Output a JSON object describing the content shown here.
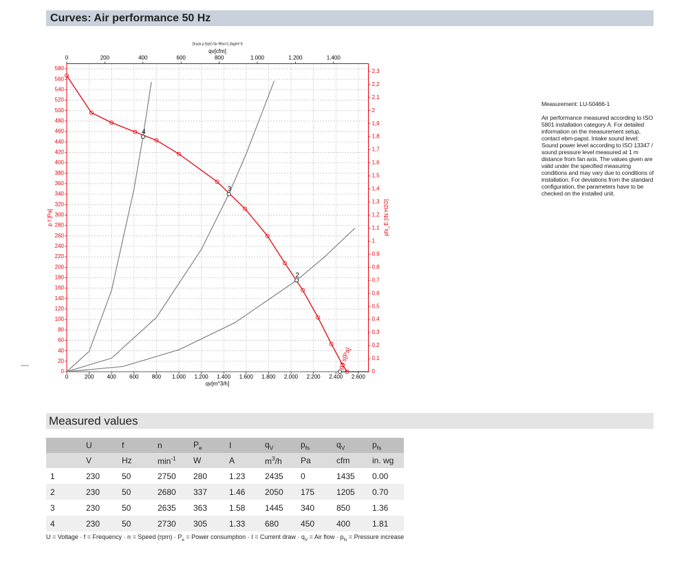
{
  "header": {
    "title": "Curves: Air performance 50 Hz"
  },
  "chart_data": {
    "type": "line",
    "title": "Druck p f(qV) für Rho=1.2kg/m^3",
    "x_label": "qv[m^3/h]",
    "x2_label": "qv[cfm]",
    "y_label": "p f [Pa]",
    "y2_label": "pfs_E [IN H2O]",
    "curve_label": "p f s[Pa]",
    "xlim": [
      0,
      2690
    ],
    "xticks": [
      0,
      200,
      400,
      600,
      800,
      {
        "value": 1000,
        "label": "1.000"
      },
      {
        "value": 1200,
        "label": "1.200"
      },
      {
        "value": 1400,
        "label": "1.400"
      },
      {
        "value": 1600,
        "label": "1.600"
      },
      {
        "value": 1800,
        "label": "1.800"
      },
      {
        "value": 2000,
        "label": "2.000"
      },
      {
        "value": 2200,
        "label": "2.200"
      },
      {
        "value": 2400,
        "label": "2.400"
      },
      {
        "value": 2600,
        "label": "2.600"
      }
    ],
    "x2lim": [
      0,
      1583
    ],
    "x2ticks": [
      0,
      200,
      400,
      600,
      800,
      {
        "value": 1000,
        "label": "1.000"
      },
      {
        "value": 1200,
        "label": "1.200"
      },
      {
        "value": 1400,
        "label": "1.400"
      }
    ],
    "ylim": [
      0,
      590
    ],
    "yticks": [
      0,
      20,
      40,
      60,
      80,
      100,
      120,
      140,
      160,
      180,
      200,
      220,
      240,
      260,
      280,
      300,
      320,
      340,
      360,
      380,
      400,
      420,
      440,
      460,
      480,
      500,
      520,
      540,
      560,
      580
    ],
    "y2lim": [
      0,
      2.36
    ],
    "y2ticks": [
      0,
      {
        "value": 0.1,
        "label": "0,1"
      },
      {
        "value": 0.2,
        "label": "0,2"
      },
      {
        "value": 0.3,
        "label": "0,3"
      },
      {
        "value": 0.4,
        "label": "0,4"
      },
      {
        "value": 0.5,
        "label": "0,5"
      },
      {
        "value": 0.6,
        "label": "0,6"
      },
      {
        "value": 0.7,
        "label": "0,7"
      },
      {
        "value": 0.8,
        "label": "0,8"
      },
      {
        "value": 0.9,
        "label": "0,9"
      },
      1,
      {
        "value": 1.1,
        "label": "1,1"
      },
      {
        "value": 1.2,
        "label": "1,2"
      },
      {
        "value": 1.3,
        "label": "1,3"
      },
      {
        "value": 1.4,
        "label": "1,4"
      },
      {
        "value": 1.5,
        "label": "1,5"
      },
      {
        "value": 1.6,
        "label": "1,6"
      },
      {
        "value": 1.7,
        "label": "1,7"
      },
      {
        "value": 1.8,
        "label": "1,8"
      },
      {
        "value": 1.9,
        "label": "1,9"
      },
      2,
      {
        "value": 2.1,
        "label": "2,1"
      },
      {
        "value": 2.2,
        "label": "2,2"
      },
      {
        "value": 2.3,
        "label": "2,3"
      }
    ],
    "grid": true,
    "axis_color": "#e8000d",
    "series": [
      {
        "color": "#e8000d",
        "markers": true,
        "x": [
          0,
          220,
          400,
          610,
          800,
          1000,
          1340,
          1590,
          1790,
          1945,
          2105,
          2240,
          2360,
          2460,
          2500
        ],
        "values": [
          567,
          496,
          477,
          459,
          443,
          417,
          364,
          312,
          260,
          208,
          156,
          104,
          53,
          13,
          0
        ]
      },
      {
        "color": "#808080",
        "markers": false,
        "x": [
          0,
          200,
          400,
          600,
          680,
          755
        ],
        "values": [
          0,
          39,
          156,
          350,
          450,
          555
        ]
      },
      {
        "color": "#808080",
        "markers": false,
        "x": [
          0,
          400,
          800,
          1200,
          1445,
          1600,
          1850
        ],
        "values": [
          0,
          26,
          104,
          234,
          340,
          417,
          557
        ]
      },
      {
        "color": "#808080",
        "markers": false,
        "x": [
          0,
          500,
          1000,
          1500,
          2050,
          2300,
          2570
        ],
        "values": [
          0,
          10,
          42,
          94,
          175,
          220,
          275
        ]
      },
      {
        "color": "#808080",
        "markers": false,
        "x": [
          0,
          2435
        ],
        "values": [
          0,
          0
        ]
      }
    ],
    "operating_points": {
      "x": [
        2435,
        2050,
        1445,
        680
      ],
      "y": [
        0,
        175,
        340,
        450
      ],
      "labels": [
        null,
        "2",
        "3",
        "4"
      ]
    }
  },
  "measurement": {
    "title": "Measurement: LU-50466-1",
    "lines": [
      "Air performance measured according to ISO",
      "5801 installation category A. For detailed",
      "information on the measurement setup,",
      "contact ebm-papst. Intake sound level:",
      "Sound power level according to ISO 13347 /",
      "sound pressure level measured at 1 m",
      "distance from fan axis. The values given are",
      "valid under the specified measuring",
      "conditions and may vary due to conditions of",
      "installation. For deviations from the standard",
      "configuration, the parameters have to be",
      "checked on the installed unit."
    ]
  },
  "section": {
    "title": "Measured values"
  },
  "table": {
    "header": [
      null,
      "U",
      "f",
      "n",
      [
        {
          "t": "P"
        },
        {
          "t": "e",
          "sub": true
        }
      ],
      "I",
      [
        {
          "t": "q"
        },
        {
          "t": "V",
          "sub": true
        }
      ],
      [
        {
          "t": "p"
        },
        {
          "t": "fs",
          "sub": true
        }
      ],
      [
        {
          "t": "q"
        },
        {
          "t": "V",
          "sub": true
        }
      ],
      [
        {
          "t": "p"
        },
        {
          "t": "fs",
          "sub": true
        }
      ]
    ],
    "units": [
      null,
      "V",
      "Hz",
      [
        {
          "t": "min"
        },
        {
          "t": "-1",
          "sup": true
        }
      ],
      "W",
      "A",
      [
        {
          "t": "m"
        },
        {
          "t": "3",
          "sup": true
        },
        {
          "t": "/h"
        }
      ],
      "Pa",
      "cfm",
      "in. wg"
    ],
    "rows": [
      [
        "1",
        "230",
        "50",
        "2750",
        "280",
        "1.23",
        "2435",
        "0",
        "1435",
        "0.00"
      ],
      [
        "2",
        "230",
        "50",
        "2680",
        "337",
        "1.46",
        "2050",
        "175",
        "1205",
        "0.70"
      ],
      [
        "3",
        "230",
        "50",
        "2635",
        "363",
        "1.58",
        "1445",
        "340",
        "850",
        "1.36"
      ],
      [
        "4",
        "230",
        "50",
        "2730",
        "305",
        "1.33",
        "680",
        "450",
        "400",
        "1.81"
      ]
    ]
  },
  "footnote": [
    {
      "t": "U = Voltage · f = Frequency · n = Speed (rpm) · P"
    },
    {
      "t": "e",
      "sub": true
    },
    {
      "t": " = Power consumption · I = Current draw · q"
    },
    {
      "t": "V",
      "sub": true
    },
    {
      "t": " = Air flow · p"
    },
    {
      "t": "fs",
      "sub": true
    },
    {
      "t": " = Pressure increase"
    }
  ]
}
